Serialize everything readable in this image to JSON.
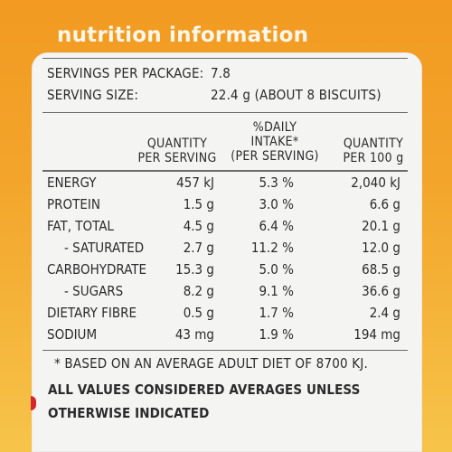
{
  "title": "nutrition information",
  "meta": {
    "servings_label": "SERVINGS PER PACKAGE:",
    "servings_value": "7.8",
    "size_label": "SERVING SIZE:",
    "size_value": "22.4 g (ABOUT 8 BISCUITS)"
  },
  "headers": {
    "per_serving": [
      "QUANTITY",
      "PER SERVING"
    ],
    "daily_intake": [
      "%DAILY",
      "INTAKE*",
      "(PER SERVING)"
    ],
    "per_100g": [
      "QUANTITY",
      "PER 100 g"
    ]
  },
  "rows": [
    {
      "name": "ENERGY",
      "per_serving": "457 kJ",
      "daily_intake": "5.3 %",
      "per_100g": "2,040 kJ"
    },
    {
      "name": "PROTEIN",
      "per_serving": "1.5 g",
      "daily_intake": "3.0 %",
      "per_100g": "6.6 g"
    },
    {
      "name": "FAT, TOTAL",
      "per_serving": "4.5 g",
      "daily_intake": "6.4 %",
      "per_100g": "20.1 g"
    },
    {
      "name": "- SATURATED",
      "per_serving": "2.7 g",
      "daily_intake": "11.2 %",
      "per_100g": "12.0 g"
    },
    {
      "name": "CARBOHYDRATE",
      "per_serving": "15.3 g",
      "daily_intake": "5.0 %",
      "per_100g": "68.5 g"
    },
    {
      "name": "- SUGARS",
      "per_serving": "8.2 g",
      "daily_intake": "9.1 %",
      "per_100g": "36.6 g"
    },
    {
      "name": "DIETARY FIBRE",
      "per_serving": "0.5 g",
      "daily_intake": "1.7 %",
      "per_100g": "2.4 g"
    },
    {
      "name": "SODIUM",
      "per_serving": "43 mg",
      "daily_intake": "1.9 %",
      "per_100g": "194 mg"
    }
  ],
  "footnote": "* BASED ON AN AVERAGE ADULT DIET OF 8700 KJ.",
  "note_line1": "ALL VALUES CONSIDERED AVERAGES UNLESS",
  "note_line2": "OTHERWISE INDICATED"
}
